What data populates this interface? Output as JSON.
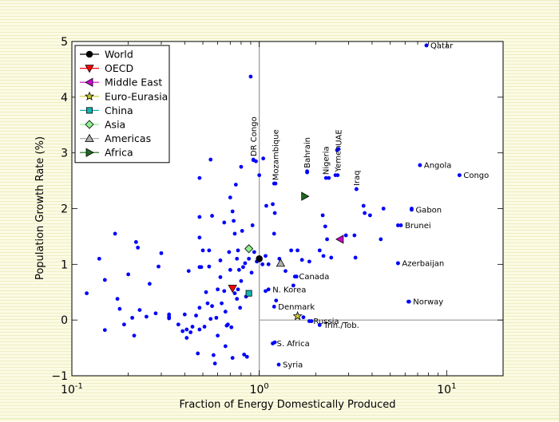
{
  "chart_data": {
    "type": "scatter",
    "xlabel": "Fraction of Energy Domestically Produced",
    "ylabel": "Population Growth Rate (%)",
    "xscale": "log",
    "xlim": [
      0.1,
      20
    ],
    "ylim": [
      -1,
      5
    ],
    "x_ticks": [
      {
        "value": 0.1,
        "base": "10",
        "exp": "-1"
      },
      {
        "value": 1,
        "base": "10",
        "exp": "0"
      },
      {
        "value": 10,
        "base": "10",
        "exp": "1"
      }
    ],
    "y_ticks": [
      -1,
      0,
      1,
      2,
      3,
      4,
      5
    ],
    "reference_lines": {
      "x": 1,
      "y": 0
    },
    "grid": false,
    "legend_position": "top-left",
    "colors": {
      "points": "#0000ff",
      "world": "#000000",
      "oecd": "#ff0000",
      "middle_east": "#cc00cc",
      "euro_eurasia": "#cccc33",
      "china": "#13b3b3",
      "asia": "#90ee90",
      "americas": "#b0b0b0",
      "africa": "#1e6b1e"
    },
    "series": [
      {
        "name": "World",
        "marker": "circle",
        "color": "#000000",
        "points": [
          [
            1.0,
            1.1
          ]
        ]
      },
      {
        "name": "OECD",
        "marker": "triangle-down",
        "color": "#ff0000",
        "points": [
          [
            0.72,
            0.57
          ]
        ]
      },
      {
        "name": "Middle East",
        "marker": "triangle-left",
        "color": "#cc00cc",
        "points": [
          [
            2.7,
            1.45
          ]
        ]
      },
      {
        "name": "Euro-Eurasia",
        "marker": "star",
        "color": "#cccc33",
        "points": [
          [
            1.6,
            0.07
          ]
        ]
      },
      {
        "name": "China",
        "marker": "square",
        "color": "#13b3b3",
        "points": [
          [
            0.88,
            0.48
          ]
        ]
      },
      {
        "name": "Asia",
        "marker": "diamond",
        "color": "#90ee90",
        "points": [
          [
            0.88,
            1.28
          ]
        ]
      },
      {
        "name": "Americas",
        "marker": "triangle-up",
        "color": "#b0b0b0",
        "points": [
          [
            1.3,
            1.02
          ]
        ]
      },
      {
        "name": "Africa",
        "marker": "triangle-right",
        "color": "#1e6b1e",
        "points": [
          [
            1.75,
            2.22
          ]
        ]
      }
    ],
    "labeled_points": [
      {
        "label": "Qatar",
        "x": 7.8,
        "y": 4.93,
        "rotated": false
      },
      {
        "label": "Angola",
        "x": 7.2,
        "y": 2.78,
        "rotated": false
      },
      {
        "label": "Congo",
        "x": 11.7,
        "y": 2.6,
        "rotated": false
      },
      {
        "label": "Gabon",
        "x": 6.5,
        "y": 1.98,
        "rotated": false
      },
      {
        "label": "Brunei",
        "x": 5.7,
        "y": 1.7,
        "rotated": false
      },
      {
        "label": "Azerbaijan",
        "x": 5.5,
        "y": 1.02,
        "rotated": false
      },
      {
        "label": "Norway",
        "x": 6.3,
        "y": 0.33,
        "rotated": false
      },
      {
        "label": "Canada",
        "x": 1.55,
        "y": 0.78,
        "rotated": false
      },
      {
        "label": "N. Korea",
        "x": 1.12,
        "y": 0.55,
        "rotated": false
      },
      {
        "label": "Denmark",
        "x": 1.2,
        "y": 0.24,
        "rotated": false
      },
      {
        "label": "Russia",
        "x": 1.85,
        "y": -0.02,
        "rotated": false
      },
      {
        "label": "Trin./Tob.",
        "x": 2.1,
        "y": -0.09,
        "rotated": false
      },
      {
        "label": "S. Africa",
        "x": 1.18,
        "y": -0.42,
        "rotated": false
      },
      {
        "label": "Syria",
        "x": 1.27,
        "y": -0.8,
        "rotated": false
      },
      {
        "label": "DR Congo",
        "x": 0.93,
        "y": 2.88,
        "rotated": true
      },
      {
        "label": "Mozambique",
        "x": 1.22,
        "y": 2.45,
        "rotated": true
      },
      {
        "label": "Bahrain",
        "x": 1.8,
        "y": 2.67,
        "rotated": true
      },
      {
        "label": "Nigeria",
        "x": 2.27,
        "y": 2.55,
        "rotated": true
      },
      {
        "label": "Yemen",
        "x": 2.62,
        "y": 2.6,
        "rotated": true
      },
      {
        "label": "UAE",
        "x": 2.65,
        "y": 3.07,
        "rotated": true
      },
      {
        "label": "Iraq",
        "x": 3.3,
        "y": 2.35,
        "rotated": true
      }
    ],
    "points": [
      [
        0.12,
        0.48
      ],
      [
        0.14,
        1.1
      ],
      [
        0.15,
        0.72
      ],
      [
        0.15,
        -0.18
      ],
      [
        0.17,
        1.55
      ],
      [
        0.175,
        0.38
      ],
      [
        0.18,
        0.2
      ],
      [
        0.19,
        -0.08
      ],
      [
        0.2,
        0.82
      ],
      [
        0.21,
        0.04
      ],
      [
        0.215,
        -0.28
      ],
      [
        0.22,
        1.4
      ],
      [
        0.225,
        1.3
      ],
      [
        0.23,
        0.18
      ],
      [
        0.25,
        0.06
      ],
      [
        0.26,
        0.65
      ],
      [
        0.28,
        0.12
      ],
      [
        0.29,
        0.96
      ],
      [
        0.3,
        1.2
      ],
      [
        0.33,
        0.06
      ],
      [
        0.33,
        0.1
      ],
      [
        0.33,
        0.03
      ],
      [
        0.37,
        -0.08
      ],
      [
        0.39,
        -0.2
      ],
      [
        0.4,
        0.1
      ],
      [
        0.41,
        -0.32
      ],
      [
        0.41,
        -0.17
      ],
      [
        0.42,
        0.88
      ],
      [
        0.43,
        -0.22
      ],
      [
        0.44,
        -0.12
      ],
      [
        0.46,
        0.08
      ],
      [
        0.47,
        -0.6
      ],
      [
        0.48,
        1.85
      ],
      [
        0.48,
        1.48
      ],
      [
        0.48,
        0.95
      ],
      [
        0.48,
        0.22
      ],
      [
        0.48,
        -0.17
      ],
      [
        0.48,
        2.55
      ],
      [
        0.49,
        0.95
      ],
      [
        0.5,
        1.25
      ],
      [
        0.51,
        -0.12
      ],
      [
        0.52,
        0.5
      ],
      [
        0.53,
        0.3
      ],
      [
        0.54,
        1.25
      ],
      [
        0.54,
        0.96
      ],
      [
        0.55,
        2.88
      ],
      [
        0.55,
        0.02
      ],
      [
        0.56,
        1.87
      ],
      [
        0.56,
        0.25
      ],
      [
        0.57,
        -0.63
      ],
      [
        0.58,
        -0.78
      ],
      [
        0.59,
        0.04
      ],
      [
        0.6,
        0.55
      ],
      [
        0.6,
        -0.28
      ],
      [
        0.62,
        1.07
      ],
      [
        0.62,
        0.77
      ],
      [
        0.63,
        0.3
      ],
      [
        0.65,
        1.75
      ],
      [
        0.65,
        0.52
      ],
      [
        0.66,
        0.15
      ],
      [
        0.66,
        -0.47
      ],
      [
        0.67,
        -0.1
      ],
      [
        0.68,
        -0.08
      ],
      [
        0.69,
        1.22
      ],
      [
        0.7,
        2.2
      ],
      [
        0.7,
        0.9
      ],
      [
        0.71,
        -0.13
      ],
      [
        0.72,
        1.95
      ],
      [
        0.72,
        -0.68
      ],
      [
        0.73,
        1.78
      ],
      [
        0.74,
        1.55
      ],
      [
        0.74,
        0.48
      ],
      [
        0.75,
        2.43
      ],
      [
        0.76,
        0.38
      ],
      [
        0.76,
        1.1
      ],
      [
        0.77,
        1.25
      ],
      [
        0.77,
        0.55
      ],
      [
        0.78,
        0.9
      ],
      [
        0.79,
        0.22
      ],
      [
        0.8,
        2.75
      ],
      [
        0.8,
        0.7
      ],
      [
        0.81,
        1.6
      ],
      [
        0.82,
        0.95
      ],
      [
        0.83,
        -0.62
      ],
      [
        0.84,
        1.02
      ],
      [
        0.85,
        0.42
      ],
      [
        0.86,
        -0.66
      ],
      [
        0.88,
        1.1
      ],
      [
        0.9,
        4.37
      ],
      [
        0.91,
        0.85
      ],
      [
        0.92,
        1.7
      ],
      [
        0.93,
        2.87
      ],
      [
        0.94,
        1.22
      ],
      [
        0.96,
        2.85
      ],
      [
        0.97,
        1.05
      ],
      [
        1.0,
        2.6
      ],
      [
        1.04,
        1.0
      ],
      [
        1.05,
        2.9
      ],
      [
        1.08,
        0.52
      ],
      [
        1.08,
        1.15
      ],
      [
        1.09,
        2.05
      ],
      [
        1.12,
        1.0
      ],
      [
        1.18,
        2.08
      ],
      [
        1.2,
        1.55
      ],
      [
        1.2,
        2.45
      ],
      [
        1.21,
        -0.4
      ],
      [
        1.21,
        1.92
      ],
      [
        1.23,
        0.35
      ],
      [
        1.28,
        1.1
      ],
      [
        1.38,
        0.88
      ],
      [
        1.48,
        1.25
      ],
      [
        1.52,
        0.62
      ],
      [
        1.58,
        0.78
      ],
      [
        1.6,
        1.25
      ],
      [
        1.69,
        1.08
      ],
      [
        1.72,
        0.05
      ],
      [
        1.8,
        2.65
      ],
      [
        1.85,
        1.05
      ],
      [
        1.9,
        -0.02
      ],
      [
        2.1,
        1.25
      ],
      [
        2.18,
        1.88
      ],
      [
        2.2,
        1.15
      ],
      [
        2.25,
        1.68
      ],
      [
        2.3,
        1.45
      ],
      [
        2.35,
        2.55
      ],
      [
        2.42,
        1.12
      ],
      [
        2.55,
        2.6
      ],
      [
        2.6,
        3.05
      ],
      [
        2.9,
        1.52
      ],
      [
        3.22,
        1.52
      ],
      [
        3.26,
        1.12
      ],
      [
        3.3,
        2.35
      ],
      [
        3.6,
        2.05
      ],
      [
        3.65,
        1.92
      ],
      [
        3.9,
        1.88
      ],
      [
        4.45,
        1.45
      ],
      [
        4.6,
        2.0
      ],
      [
        5.5,
        1.7
      ],
      [
        5.5,
        1.02
      ],
      [
        6.25,
        0.33
      ],
      [
        6.5,
        2.0
      ],
      [
        7.2,
        2.78
      ],
      [
        7.8,
        4.93
      ],
      [
        11.7,
        2.6
      ]
    ]
  }
}
